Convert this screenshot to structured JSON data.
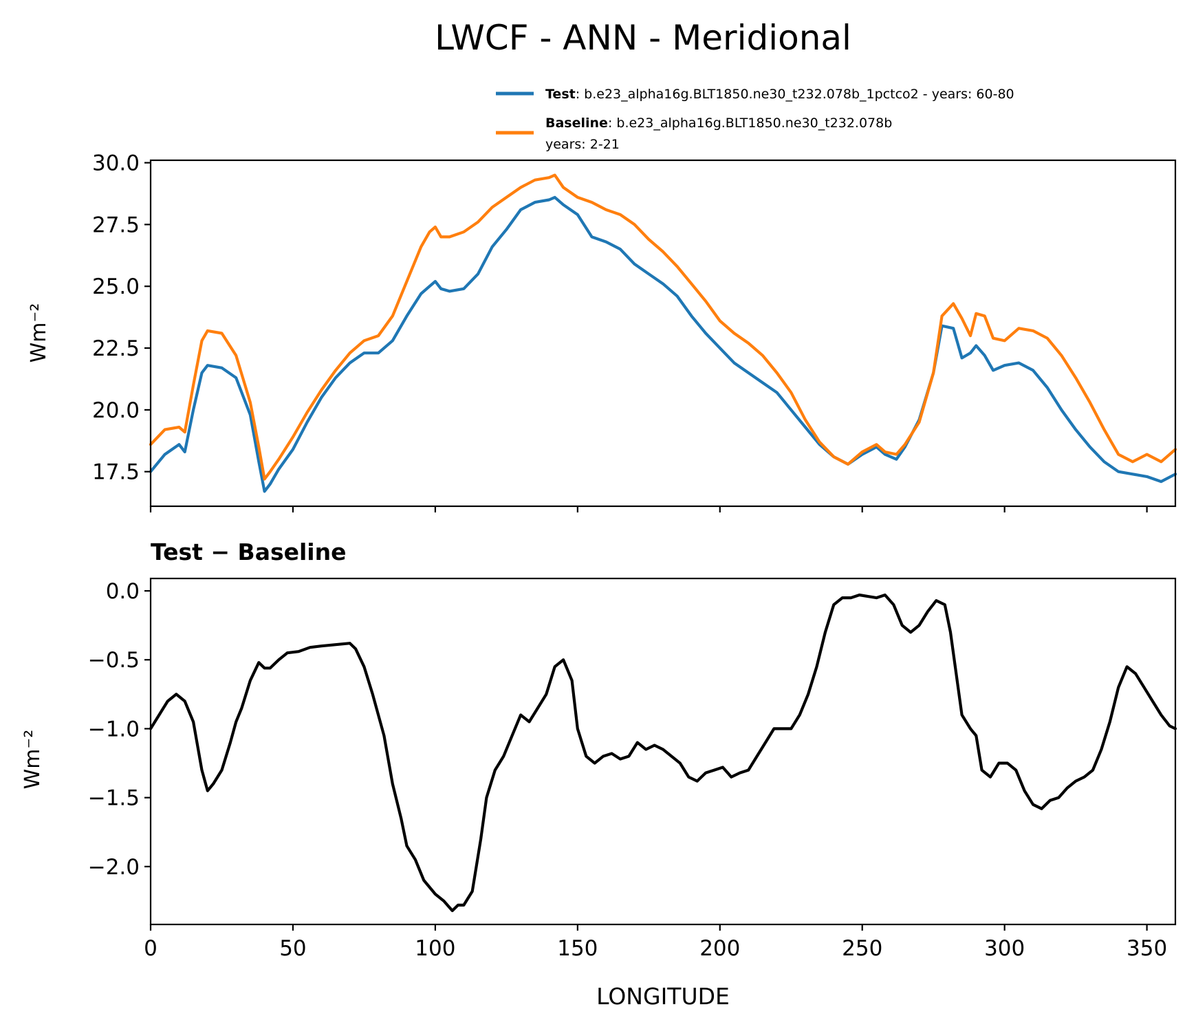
{
  "title": "LWCF - ANN - Meridional",
  "legend": {
    "test_label": "Test",
    "test_desc": ": b.e23_alpha16g.BLT1850.ne30_t232.078b_1pctco2 - years: 60-80",
    "baseline_label": "Baseline",
    "baseline_desc": ": b.e23_alpha16g.BLT1850.ne30_t232.078b",
    "baseline_years": "years: 2-21"
  },
  "colors": {
    "test": "#1f77b4",
    "baseline": "#ff7f0e",
    "diff": "#000000"
  },
  "chart_data": [
    {
      "type": "line",
      "title": "LWCF - ANN - Meridional",
      "xlabel": "",
      "ylabel": "Wm⁻²",
      "xlim": [
        0,
        360
      ],
      "ylim": [
        16.1,
        30.1
      ],
      "yticks": [
        17.5,
        20.0,
        22.5,
        25.0,
        27.5,
        30.0
      ],
      "ytick_labels": [
        "17.5",
        "20.0",
        "22.5",
        "25.0",
        "27.5",
        "30.0"
      ],
      "xticks": [
        0,
        50,
        100,
        150,
        200,
        250,
        300,
        350
      ],
      "legend_position": "top-right",
      "series": [
        {
          "name": "Test",
          "x": [
            0,
            5,
            10,
            12,
            15,
            18,
            20,
            25,
            30,
            35,
            38,
            40,
            42,
            45,
            50,
            55,
            60,
            65,
            70,
            75,
            80,
            85,
            90,
            95,
            98,
            100,
            102,
            105,
            110,
            115,
            120,
            125,
            130,
            135,
            140,
            142,
            145,
            150,
            155,
            160,
            165,
            170,
            175,
            180,
            185,
            190,
            195,
            200,
            205,
            210,
            215,
            220,
            225,
            230,
            235,
            240,
            245,
            250,
            255,
            258,
            262,
            265,
            270,
            275,
            278,
            282,
            285,
            288,
            290,
            293,
            296,
            300,
            305,
            310,
            315,
            320,
            325,
            330,
            335,
            340,
            345,
            350,
            355,
            360
          ],
          "values": [
            17.5,
            18.2,
            18.6,
            18.3,
            20.0,
            21.5,
            21.8,
            21.7,
            21.3,
            19.8,
            17.9,
            16.7,
            17.0,
            17.6,
            18.4,
            19.5,
            20.5,
            21.3,
            21.9,
            22.3,
            22.3,
            22.8,
            23.8,
            24.7,
            25.0,
            25.2,
            24.9,
            24.8,
            24.9,
            25.5,
            26.6,
            27.3,
            28.1,
            28.4,
            28.5,
            28.6,
            28.3,
            27.9,
            27.0,
            26.8,
            26.5,
            25.9,
            25.5,
            25.1,
            24.6,
            23.8,
            23.1,
            22.5,
            21.9,
            21.5,
            21.1,
            20.7,
            20.0,
            19.3,
            18.6,
            18.1,
            17.8,
            18.2,
            18.5,
            18.2,
            18.0,
            18.5,
            19.6,
            21.5,
            23.4,
            23.3,
            22.1,
            22.3,
            22.6,
            22.2,
            21.6,
            21.8,
            21.9,
            21.6,
            20.9,
            20.0,
            19.2,
            18.5,
            17.9,
            17.5,
            17.4,
            17.3,
            17.1,
            17.4
          ]
        },
        {
          "name": "Baseline",
          "x": [
            0,
            5,
            10,
            12,
            15,
            18,
            20,
            25,
            30,
            35,
            38,
            40,
            42,
            45,
            50,
            55,
            60,
            65,
            70,
            75,
            80,
            85,
            90,
            95,
            98,
            100,
            102,
            105,
            110,
            115,
            120,
            125,
            130,
            135,
            140,
            142,
            145,
            150,
            155,
            160,
            165,
            170,
            175,
            180,
            185,
            190,
            195,
            200,
            205,
            210,
            215,
            220,
            225,
            230,
            235,
            240,
            245,
            250,
            255,
            258,
            262,
            265,
            270,
            275,
            278,
            282,
            285,
            288,
            290,
            293,
            296,
            300,
            305,
            310,
            315,
            320,
            325,
            330,
            335,
            340,
            345,
            350,
            355,
            360
          ],
          "values": [
            18.6,
            19.2,
            19.3,
            19.1,
            21.0,
            22.8,
            23.2,
            23.1,
            22.2,
            20.3,
            18.5,
            17.2,
            17.5,
            18.0,
            18.9,
            19.9,
            20.8,
            21.6,
            22.3,
            22.8,
            23.0,
            23.8,
            25.2,
            26.6,
            27.2,
            27.4,
            27.0,
            27.0,
            27.2,
            27.6,
            28.2,
            28.6,
            29.0,
            29.3,
            29.4,
            29.5,
            29.0,
            28.6,
            28.4,
            28.1,
            27.9,
            27.5,
            26.9,
            26.4,
            25.8,
            25.1,
            24.4,
            23.6,
            23.1,
            22.7,
            22.2,
            21.5,
            20.7,
            19.6,
            18.7,
            18.1,
            17.8,
            18.3,
            18.6,
            18.3,
            18.2,
            18.6,
            19.5,
            21.5,
            23.8,
            24.3,
            23.7,
            23.0,
            23.9,
            23.8,
            22.9,
            22.8,
            23.3,
            23.2,
            22.9,
            22.2,
            21.3,
            20.3,
            19.2,
            18.2,
            17.9,
            18.2,
            17.9,
            18.4
          ]
        }
      ]
    },
    {
      "type": "line",
      "title": "Test − Baseline",
      "xlabel": "LONGITUDE",
      "ylabel": "Wm⁻²",
      "xlim": [
        0,
        360
      ],
      "ylim": [
        -2.42,
        0.09
      ],
      "yticks": [
        0.0,
        -0.5,
        -1.0,
        -1.5,
        -2.0
      ],
      "ytick_labels": [
        "0.0",
        "−0.5",
        "−1.0",
        "−1.5",
        "−2.0"
      ],
      "xticks": [
        0,
        50,
        100,
        150,
        200,
        250,
        300,
        350
      ],
      "xtick_labels": [
        "0",
        "50",
        "100",
        "150",
        "200",
        "250",
        "300",
        "350"
      ],
      "series": [
        {
          "name": "Test − Baseline",
          "x": [
            0,
            3,
            6,
            9,
            12,
            15,
            18,
            20,
            22,
            25,
            28,
            30,
            32,
            35,
            38,
            40,
            42,
            45,
            48,
            52,
            56,
            60,
            65,
            70,
            72,
            75,
            78,
            82,
            85,
            88,
            90,
            93,
            96,
            100,
            103,
            106,
            108,
            110,
            113,
            116,
            118,
            121,
            124,
            127,
            130,
            133,
            136,
            139,
            142,
            145,
            148,
            150,
            153,
            156,
            159,
            162,
            165,
            168,
            171,
            174,
            177,
            180,
            183,
            186,
            189,
            192,
            195,
            198,
            201,
            204,
            207,
            210,
            213,
            216,
            219,
            222,
            225,
            228,
            231,
            234,
            237,
            240,
            243,
            246,
            249,
            252,
            255,
            258,
            261,
            264,
            267,
            270,
            273,
            276,
            279,
            281,
            283,
            285,
            288,
            290,
            292,
            295,
            298,
            301,
            304,
            307,
            310,
            313,
            316,
            319,
            322,
            325,
            328,
            331,
            334,
            337,
            340,
            343,
            346,
            349,
            352,
            355,
            358,
            360
          ],
          "values": [
            -1.0,
            -0.9,
            -0.8,
            -0.75,
            -0.8,
            -0.95,
            -1.3,
            -1.45,
            -1.4,
            -1.3,
            -1.1,
            -0.95,
            -0.85,
            -0.65,
            -0.52,
            -0.56,
            -0.56,
            -0.5,
            -0.45,
            -0.44,
            -0.41,
            -0.4,
            -0.39,
            -0.38,
            -0.42,
            -0.55,
            -0.75,
            -1.05,
            -1.4,
            -1.65,
            -1.85,
            -1.95,
            -2.1,
            -2.2,
            -2.25,
            -2.32,
            -2.28,
            -2.28,
            -2.18,
            -1.8,
            -1.5,
            -1.3,
            -1.2,
            -1.05,
            -0.9,
            -0.95,
            -0.85,
            -0.75,
            -0.55,
            -0.5,
            -0.65,
            -1.0,
            -1.2,
            -1.25,
            -1.2,
            -1.18,
            -1.22,
            -1.2,
            -1.1,
            -1.15,
            -1.12,
            -1.15,
            -1.2,
            -1.25,
            -1.35,
            -1.38,
            -1.32,
            -1.3,
            -1.28,
            -1.35,
            -1.32,
            -1.3,
            -1.2,
            -1.1,
            -1.0,
            -1.0,
            -1.0,
            -0.9,
            -0.75,
            -0.55,
            -0.3,
            -0.1,
            -0.05,
            -0.05,
            -0.03,
            -0.04,
            -0.05,
            -0.03,
            -0.1,
            -0.25,
            -0.3,
            -0.25,
            -0.15,
            -0.07,
            -0.1,
            -0.3,
            -0.6,
            -0.9,
            -1.0,
            -1.05,
            -1.3,
            -1.35,
            -1.25,
            -1.25,
            -1.3,
            -1.45,
            -1.55,
            -1.58,
            -1.52,
            -1.5,
            -1.43,
            -1.38,
            -1.35,
            -1.3,
            -1.15,
            -0.95,
            -0.7,
            -0.55,
            -0.6,
            -0.7,
            -0.8,
            -0.9,
            -0.98,
            -1.0
          ]
        }
      ]
    }
  ]
}
